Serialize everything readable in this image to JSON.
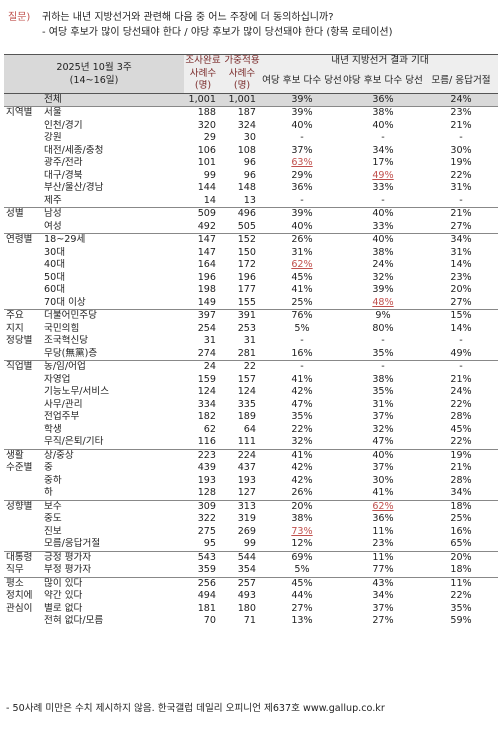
{
  "question": {
    "label": "질문)",
    "text": "귀하는 내년 지방선거와 관련해 다음 중 어느 주장에 더 동의하십니까?",
    "options": "- 여당 후보가 많이 당선돼야 한다 / 야당 후보가 많이 당선돼야 한다 (항목 로테이션)"
  },
  "header": {
    "survey_date": "2025년 10월 3주",
    "survey_days": "(14~16일)",
    "n_complete": "조사완료",
    "n_weighted": "가중적용",
    "cases": "사례수",
    "unit": "(명)",
    "group": "내년 지방선거 결과 기대",
    "col_ruling": "여당 후보 다수 당선",
    "col_opposition": "야당 후보 다수 당선",
    "col_unknown": "모름/ 응답거절"
  },
  "rows": [
    {
      "cat": "",
      "sub": "전체",
      "n1": "1,001",
      "n2": "1,001",
      "a": "39%",
      "b": "36%",
      "c": "24%",
      "total": true
    },
    {
      "cat": "지역별",
      "sub": "서울",
      "n1": "188",
      "n2": "187",
      "a": "39%",
      "b": "38%",
      "c": "23%",
      "sep": true
    },
    {
      "cat": "",
      "sub": "인천/경기",
      "n1": "320",
      "n2": "324",
      "a": "40%",
      "b": "40%",
      "c": "21%"
    },
    {
      "cat": "",
      "sub": "강원",
      "n1": "29",
      "n2": "30",
      "a": "-",
      "b": "-",
      "c": "-"
    },
    {
      "cat": "",
      "sub": "대전/세종/충청",
      "n1": "106",
      "n2": "108",
      "a": "37%",
      "b": "34%",
      "c": "30%"
    },
    {
      "cat": "",
      "sub": "광주/전라",
      "n1": "101",
      "n2": "96",
      "a": "63%",
      "b": "17%",
      "c": "19%",
      "ha": true
    },
    {
      "cat": "",
      "sub": "대구/경북",
      "n1": "99",
      "n2": "96",
      "a": "29%",
      "b": "49%",
      "c": "22%",
      "hb": true
    },
    {
      "cat": "",
      "sub": "부산/울산/경남",
      "n1": "144",
      "n2": "148",
      "a": "36%",
      "b": "33%",
      "c": "31%"
    },
    {
      "cat": "",
      "sub": "제주",
      "n1": "14",
      "n2": "13",
      "a": "-",
      "b": "-",
      "c": "-"
    },
    {
      "cat": "성별",
      "sub": "남성",
      "n1": "509",
      "n2": "496",
      "a": "39%",
      "b": "40%",
      "c": "21%",
      "sep": true
    },
    {
      "cat": "",
      "sub": "여성",
      "n1": "492",
      "n2": "505",
      "a": "40%",
      "b": "33%",
      "c": "27%"
    },
    {
      "cat": "연령별",
      "sub": "18~29세",
      "n1": "147",
      "n2": "152",
      "a": "26%",
      "b": "40%",
      "c": "34%",
      "sep": true
    },
    {
      "cat": "",
      "sub": "30대",
      "n1": "147",
      "n2": "150",
      "a": "31%",
      "b": "38%",
      "c": "31%"
    },
    {
      "cat": "",
      "sub": "40대",
      "n1": "164",
      "n2": "172",
      "a": "62%",
      "b": "24%",
      "c": "14%",
      "ha": true
    },
    {
      "cat": "",
      "sub": "50대",
      "n1": "196",
      "n2": "196",
      "a": "45%",
      "b": "32%",
      "c": "23%"
    },
    {
      "cat": "",
      "sub": "60대",
      "n1": "198",
      "n2": "177",
      "a": "41%",
      "b": "39%",
      "c": "20%"
    },
    {
      "cat": "",
      "sub": "70대 이상",
      "n1": "149",
      "n2": "155",
      "a": "25%",
      "b": "48%",
      "c": "27%",
      "hb": true
    },
    {
      "cat": "주요",
      "sub": "더불어민주당",
      "n1": "397",
      "n2": "391",
      "a": "76%",
      "b": "9%",
      "c": "15%",
      "sep": true
    },
    {
      "cat": "지지",
      "sub": "국민의힘",
      "n1": "254",
      "n2": "253",
      "a": "5%",
      "b": "80%",
      "c": "14%"
    },
    {
      "cat": "정당별",
      "sub": "조국혁신당",
      "n1": "31",
      "n2": "31",
      "a": "-",
      "b": "-",
      "c": "-"
    },
    {
      "cat": "",
      "sub": "무당(無黨)층",
      "n1": "274",
      "n2": "281",
      "a": "16%",
      "b": "35%",
      "c": "49%"
    },
    {
      "cat": "직업별",
      "sub": "농/임/어업",
      "n1": "24",
      "n2": "22",
      "a": "-",
      "b": "-",
      "c": "-",
      "sep": true
    },
    {
      "cat": "",
      "sub": "자영업",
      "n1": "159",
      "n2": "157",
      "a": "41%",
      "b": "38%",
      "c": "21%"
    },
    {
      "cat": "",
      "sub": "기능노무/서비스",
      "n1": "124",
      "n2": "124",
      "a": "42%",
      "b": "35%",
      "c": "24%"
    },
    {
      "cat": "",
      "sub": "사무/관리",
      "n1": "334",
      "n2": "335",
      "a": "47%",
      "b": "31%",
      "c": "22%"
    },
    {
      "cat": "",
      "sub": "전업주부",
      "n1": "182",
      "n2": "189",
      "a": "35%",
      "b": "37%",
      "c": "28%"
    },
    {
      "cat": "",
      "sub": "학생",
      "n1": "62",
      "n2": "64",
      "a": "22%",
      "b": "32%",
      "c": "45%"
    },
    {
      "cat": "",
      "sub": "무직/은퇴/기타",
      "n1": "116",
      "n2": "111",
      "a": "32%",
      "b": "47%",
      "c": "22%"
    },
    {
      "cat": "생활",
      "sub": "상/중상",
      "n1": "223",
      "n2": "224",
      "a": "41%",
      "b": "40%",
      "c": "19%",
      "sep": true
    },
    {
      "cat": "수준별",
      "sub": "중",
      "n1": "439",
      "n2": "437",
      "a": "42%",
      "b": "37%",
      "c": "21%"
    },
    {
      "cat": "",
      "sub": "중하",
      "n1": "193",
      "n2": "193",
      "a": "42%",
      "b": "30%",
      "c": "28%"
    },
    {
      "cat": "",
      "sub": "하",
      "n1": "128",
      "n2": "127",
      "a": "26%",
      "b": "41%",
      "c": "34%"
    },
    {
      "cat": "성향별",
      "sub": "보수",
      "n1": "309",
      "n2": "313",
      "a": "20%",
      "b": "62%",
      "c": "18%",
      "sep": true,
      "hb": true
    },
    {
      "cat": "",
      "sub": "중도",
      "n1": "322",
      "n2": "319",
      "a": "38%",
      "b": "36%",
      "c": "25%"
    },
    {
      "cat": "",
      "sub": "진보",
      "n1": "275",
      "n2": "269",
      "a": "73%",
      "b": "11%",
      "c": "16%",
      "ha": true
    },
    {
      "cat": "",
      "sub": "모름/응답거절",
      "n1": "95",
      "n2": "99",
      "a": "12%",
      "b": "23%",
      "c": "65%"
    },
    {
      "cat": "대통령",
      "sub": "긍정 평가자",
      "n1": "543",
      "n2": "544",
      "a": "69%",
      "b": "11%",
      "c": "20%",
      "sep": true
    },
    {
      "cat": "직무",
      "sub": "부정 평가자",
      "n1": "359",
      "n2": "354",
      "a": "5%",
      "b": "77%",
      "c": "18%"
    },
    {
      "cat": "평소",
      "sub": "많이 있다",
      "n1": "256",
      "n2": "257",
      "a": "45%",
      "b": "43%",
      "c": "11%",
      "sep": true
    },
    {
      "cat": "정치에",
      "sub": "약간 있다",
      "n1": "494",
      "n2": "493",
      "a": "44%",
      "b": "34%",
      "c": "22%"
    },
    {
      "cat": "관심이",
      "sub": "별로 없다",
      "n1": "181",
      "n2": "180",
      "a": "27%",
      "b": "37%",
      "c": "35%"
    },
    {
      "cat": "",
      "sub": "전혀 없다/모름",
      "n1": "70",
      "n2": "71",
      "a": "13%",
      "b": "27%",
      "c": "59%"
    }
  ],
  "footer": "- 50사례 미만은 수치 제시하지 않음. 한국갤럽 데일리 오피니언 제637호 www.gallup.co.kr"
}
